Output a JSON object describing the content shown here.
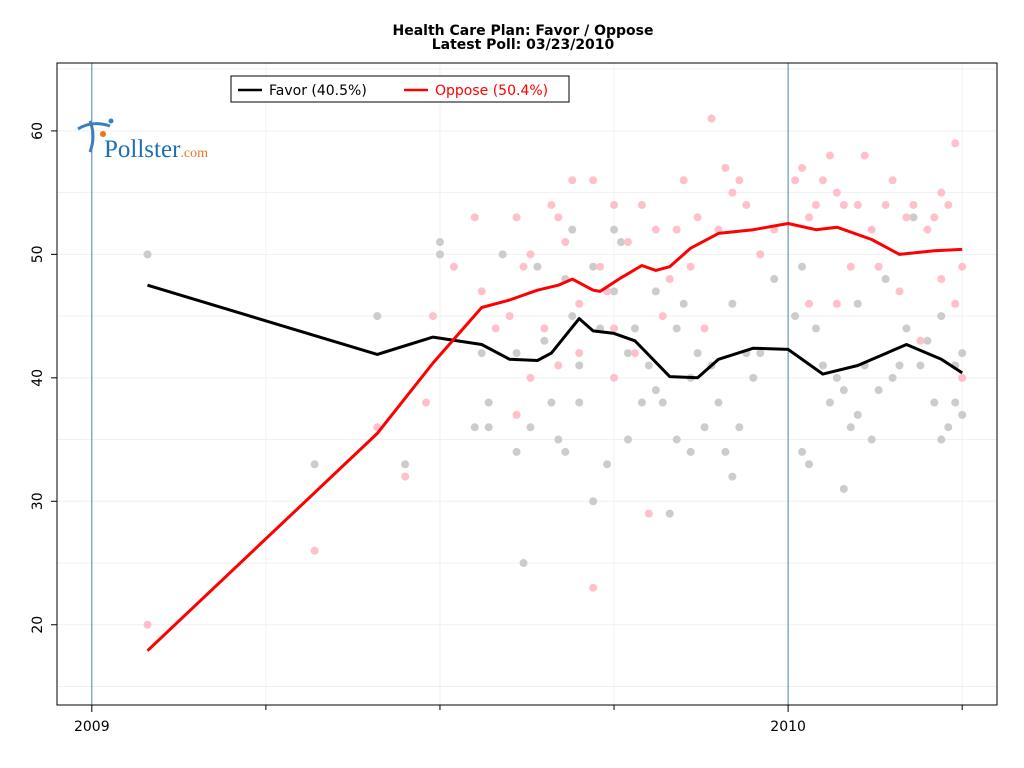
{
  "chart_data": {
    "type": "line",
    "title": "Health Care Plan: Favor / Oppose",
    "subtitle": "Latest Poll: 03/23/2010",
    "xlabel": "",
    "ylabel": "",
    "xlim": [
      2008.95,
      2010.3
    ],
    "ylim": [
      13.5,
      65.5
    ],
    "yticks": [
      20,
      30,
      40,
      50,
      60
    ],
    "xticks": [
      {
        "value": 2009,
        "label": "2009"
      },
      {
        "value": 2010,
        "label": "2010"
      }
    ],
    "minor_xticks": [
      2009.25,
      2009.5,
      2009.75,
      2010.25
    ],
    "grid": true,
    "legend_position": "top-left",
    "colors": {
      "favor": "#000000",
      "oppose": "#ff0000",
      "favor_points": "#cccccc",
      "oppose_points": "#ffc0cb",
      "year_line": "#4a86a8"
    },
    "series": [
      {
        "name": "Favor (40.5%)",
        "key": "favor",
        "color": "#000000",
        "trend": [
          [
            2009.08,
            47.5
          ],
          [
            2009.41,
            41.9
          ],
          [
            2009.49,
            43.3
          ],
          [
            2009.56,
            42.7
          ],
          [
            2009.6,
            41.5
          ],
          [
            2009.64,
            41.4
          ],
          [
            2009.66,
            42
          ],
          [
            2009.7,
            44.8
          ],
          [
            2009.72,
            43.8
          ],
          [
            2009.75,
            43.6
          ],
          [
            2009.78,
            43
          ],
          [
            2009.83,
            40.1
          ],
          [
            2009.87,
            40
          ],
          [
            2009.9,
            41.5
          ],
          [
            2009.95,
            42.4
          ],
          [
            2010.0,
            42.3
          ],
          [
            2010.05,
            40.3
          ],
          [
            2010.1,
            41
          ],
          [
            2010.17,
            42.7
          ],
          [
            2010.22,
            41.5
          ],
          [
            2010.25,
            40.4
          ]
        ],
        "points": [
          [
            2009.08,
            50
          ],
          [
            2009.32,
            33
          ],
          [
            2009.41,
            45
          ],
          [
            2009.45,
            33
          ],
          [
            2009.5,
            51
          ],
          [
            2009.5,
            50
          ],
          [
            2009.55,
            36
          ],
          [
            2009.56,
            42
          ],
          [
            2009.57,
            38
          ],
          [
            2009.57,
            36
          ],
          [
            2009.59,
            50
          ],
          [
            2009.61,
            42
          ],
          [
            2009.61,
            34
          ],
          [
            2009.62,
            25
          ],
          [
            2009.63,
            36
          ],
          [
            2009.64,
            49
          ],
          [
            2009.65,
            43
          ],
          [
            2009.66,
            38
          ],
          [
            2009.67,
            35
          ],
          [
            2009.68,
            48
          ],
          [
            2009.68,
            34
          ],
          [
            2009.69,
            52
          ],
          [
            2009.69,
            45
          ],
          [
            2009.7,
            41
          ],
          [
            2009.7,
            38
          ],
          [
            2009.72,
            49
          ],
          [
            2009.72,
            30
          ],
          [
            2009.73,
            44
          ],
          [
            2009.74,
            33
          ],
          [
            2009.75,
            52
          ],
          [
            2009.75,
            47
          ],
          [
            2009.76,
            51
          ],
          [
            2009.77,
            35
          ],
          [
            2009.77,
            42
          ],
          [
            2009.78,
            44
          ],
          [
            2009.79,
            38
          ],
          [
            2009.8,
            41
          ],
          [
            2009.81,
            47
          ],
          [
            2009.81,
            39
          ],
          [
            2009.82,
            38
          ],
          [
            2009.83,
            29
          ],
          [
            2009.84,
            35
          ],
          [
            2009.84,
            44
          ],
          [
            2009.85,
            46
          ],
          [
            2009.86,
            40
          ],
          [
            2009.86,
            34
          ],
          [
            2009.87,
            42
          ],
          [
            2009.88,
            36
          ],
          [
            2009.89,
            41
          ],
          [
            2009.9,
            38
          ],
          [
            2009.91,
            34
          ],
          [
            2009.92,
            32
          ],
          [
            2009.92,
            46
          ],
          [
            2009.93,
            36
          ],
          [
            2009.94,
            42
          ],
          [
            2009.95,
            40
          ],
          [
            2009.96,
            42
          ],
          [
            2009.98,
            48
          ],
          [
            2010.01,
            45
          ],
          [
            2010.02,
            49
          ],
          [
            2010.02,
            34
          ],
          [
            2010.03,
            33
          ],
          [
            2010.04,
            44
          ],
          [
            2010.05,
            41
          ],
          [
            2010.06,
            38
          ],
          [
            2010.07,
            40
          ],
          [
            2010.08,
            31
          ],
          [
            2010.08,
            39
          ],
          [
            2010.09,
            36
          ],
          [
            2010.1,
            46
          ],
          [
            2010.1,
            37
          ],
          [
            2010.11,
            41
          ],
          [
            2010.12,
            35
          ],
          [
            2010.13,
            39
          ],
          [
            2010.14,
            48
          ],
          [
            2010.15,
            40
          ],
          [
            2010.16,
            41
          ],
          [
            2010.17,
            44
          ],
          [
            2010.18,
            53
          ],
          [
            2010.19,
            41
          ],
          [
            2010.2,
            43
          ],
          [
            2010.21,
            38
          ],
          [
            2010.22,
            35
          ],
          [
            2010.22,
            45
          ],
          [
            2010.23,
            36
          ],
          [
            2010.24,
            38
          ],
          [
            2010.24,
            41
          ],
          [
            2010.25,
            42
          ],
          [
            2010.25,
            37
          ],
          [
            2010.25,
            40
          ]
        ]
      },
      {
        "name": "Oppose (50.4%)",
        "key": "oppose",
        "color": "#ff0000",
        "trend": [
          [
            2009.08,
            17.9
          ],
          [
            2009.41,
            35.5
          ],
          [
            2009.49,
            41.2
          ],
          [
            2009.56,
            45.7
          ],
          [
            2009.6,
            46.3
          ],
          [
            2009.64,
            47.1
          ],
          [
            2009.67,
            47.5
          ],
          [
            2009.69,
            48
          ],
          [
            2009.72,
            47.1
          ],
          [
            2009.73,
            47
          ],
          [
            2009.76,
            48.1
          ],
          [
            2009.79,
            49.1
          ],
          [
            2009.81,
            48.7
          ],
          [
            2009.83,
            49
          ],
          [
            2009.86,
            50.5
          ],
          [
            2009.9,
            51.7
          ],
          [
            2009.95,
            52
          ],
          [
            2010.0,
            52.5
          ],
          [
            2010.04,
            52
          ],
          [
            2010.07,
            52.2
          ],
          [
            2010.12,
            51.2
          ],
          [
            2010.16,
            50
          ],
          [
            2010.21,
            50.3
          ],
          [
            2010.25,
            50.4
          ]
        ],
        "points": [
          [
            2009.08,
            20
          ],
          [
            2009.32,
            26
          ],
          [
            2009.41,
            36
          ],
          [
            2009.45,
            32
          ],
          [
            2009.48,
            38
          ],
          [
            2009.49,
            45
          ],
          [
            2009.52,
            49
          ],
          [
            2009.55,
            53
          ],
          [
            2009.56,
            47
          ],
          [
            2009.58,
            44
          ],
          [
            2009.6,
            45
          ],
          [
            2009.61,
            53
          ],
          [
            2009.61,
            37
          ],
          [
            2009.62,
            49
          ],
          [
            2009.63,
            50
          ],
          [
            2009.63,
            40
          ],
          [
            2009.65,
            44
          ],
          [
            2009.66,
            54
          ],
          [
            2009.67,
            53
          ],
          [
            2009.67,
            41
          ],
          [
            2009.68,
            51
          ],
          [
            2009.69,
            56
          ],
          [
            2009.7,
            46
          ],
          [
            2009.7,
            42
          ],
          [
            2009.72,
            23
          ],
          [
            2009.72,
            56
          ],
          [
            2009.73,
            49
          ],
          [
            2009.74,
            47
          ],
          [
            2009.75,
            54
          ],
          [
            2009.75,
            44
          ],
          [
            2009.75,
            40
          ],
          [
            2009.77,
            51
          ],
          [
            2009.78,
            42
          ],
          [
            2009.79,
            54
          ],
          [
            2009.8,
            29
          ],
          [
            2009.81,
            52
          ],
          [
            2009.82,
            45
          ],
          [
            2009.83,
            48
          ],
          [
            2009.84,
            52
          ],
          [
            2009.85,
            56
          ],
          [
            2009.86,
            49
          ],
          [
            2009.87,
            53
          ],
          [
            2009.88,
            44
          ],
          [
            2009.89,
            61
          ],
          [
            2009.9,
            52
          ],
          [
            2009.91,
            57
          ],
          [
            2009.92,
            55
          ],
          [
            2009.93,
            56
          ],
          [
            2009.94,
            54
          ],
          [
            2009.96,
            50
          ],
          [
            2009.98,
            52
          ],
          [
            2010.01,
            56
          ],
          [
            2010.02,
            57
          ],
          [
            2010.03,
            46
          ],
          [
            2010.03,
            53
          ],
          [
            2010.04,
            54
          ],
          [
            2010.05,
            56
          ],
          [
            2010.06,
            58
          ],
          [
            2010.07,
            55
          ],
          [
            2010.07,
            46
          ],
          [
            2010.08,
            54
          ],
          [
            2010.09,
            49
          ],
          [
            2010.1,
            54
          ],
          [
            2010.11,
            58
          ],
          [
            2010.12,
            52
          ],
          [
            2010.13,
            49
          ],
          [
            2010.14,
            54
          ],
          [
            2010.15,
            56
          ],
          [
            2010.16,
            47
          ],
          [
            2010.17,
            53
          ],
          [
            2010.18,
            54
          ],
          [
            2010.19,
            43
          ],
          [
            2010.2,
            52
          ],
          [
            2010.21,
            53
          ],
          [
            2010.22,
            55
          ],
          [
            2010.22,
            48
          ],
          [
            2010.23,
            54
          ],
          [
            2010.24,
            59
          ],
          [
            2010.24,
            46
          ],
          [
            2010.25,
            49
          ],
          [
            2010.25,
            40
          ]
        ]
      }
    ]
  },
  "logo": {
    "main": "Pollster",
    "suffix": ".com"
  }
}
